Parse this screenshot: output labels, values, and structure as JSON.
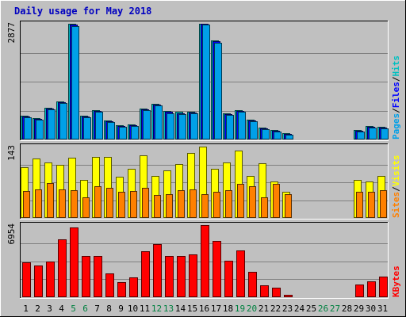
{
  "chart_data": {
    "type": "bar",
    "title": "Daily usage for May 2018",
    "colors": {
      "background": "#c0c0c0",
      "title": "#0000c0",
      "hits": "#00c0c0",
      "pages": "#00a0e8",
      "files": "#0000ff",
      "visits": "#ffff00",
      "sites": "#ff8000",
      "kbytes": "#ff0000",
      "weekday_label": "#000000",
      "weekend_label": "#008040",
      "slash": "#000000"
    },
    "days": [
      "1",
      "2",
      "3",
      "4",
      "5",
      "6",
      "7",
      "8",
      "9",
      "10",
      "11",
      "12",
      "13",
      "14",
      "15",
      "16",
      "17",
      "18",
      "19",
      "20",
      "21",
      "22",
      "23",
      "24",
      "25",
      "26",
      "27",
      "28",
      "29",
      "30",
      "31"
    ],
    "weekend_days": [
      "5",
      "6",
      "12",
      "13",
      "19",
      "20",
      "26",
      "27"
    ],
    "panels": [
      {
        "name": "hits-files-pages",
        "max_label": "2877",
        "max": 2877,
        "legend": [
          "Pages",
          "/",
          "Files",
          "/",
          "Hits"
        ],
        "series": [
          {
            "name": "Hits",
            "values": [
              600,
              540,
              780,
              940,
              2877,
              590,
              730,
              480,
              360,
              370,
              770,
              890,
              700,
              680,
              690,
              2877,
              2460,
              650,
              730,
              500,
              290,
              240,
              150,
              0,
              0,
              0,
              0,
              0,
              240,
              340,
              310
            ]
          },
          {
            "name": "Files",
            "values": [
              580,
              520,
              760,
              920,
              2860,
              570,
              710,
              460,
              340,
              350,
              750,
              870,
              680,
              660,
              670,
              2870,
              2440,
              630,
              710,
              480,
              270,
              220,
              130,
              0,
              0,
              0,
              0,
              0,
              220,
              320,
              290
            ]
          },
          {
            "name": "Pages",
            "values": [
              560,
              500,
              740,
              900,
              2820,
              550,
              690,
              440,
              320,
              330,
              730,
              850,
              660,
              640,
              660,
              2860,
              2400,
              610,
              690,
              460,
              250,
              200,
              110,
              0,
              0,
              0,
              0,
              0,
              200,
              300,
              270
            ]
          }
        ]
      },
      {
        "name": "visits-sites",
        "max_label": "143",
        "max": 143,
        "legend": [
          "Sites",
          "/",
          "Visits"
        ],
        "series": [
          {
            "name": "Visits",
            "values": [
              102,
              119,
              112,
              107,
              121,
              77,
              122,
              122,
              82,
              99,
              125,
              84,
              96,
              108,
              130,
              143,
              98,
              112,
              135,
              84,
              110,
              73,
              52,
              0,
              0,
              0,
              0,
              0,
              77,
              73,
              84
            ]
          },
          {
            "name": "Sites",
            "values": [
              54,
              57,
              70,
              57,
              56,
              41,
              64,
              61,
              52,
              54,
              60,
              46,
              48,
              56,
              57,
              47,
              52,
              56,
              69,
              64,
              41,
              68,
              48,
              0,
              0,
              0,
              0,
              0,
              53,
              53,
              56
            ]
          }
        ]
      },
      {
        "name": "kbytes",
        "max_label": "6954",
        "max": 6954,
        "legend": [
          "KBytes"
        ],
        "series": [
          {
            "name": "KBytes",
            "values": [
              3350,
              3030,
              3450,
              5580,
              6700,
              4000,
              4000,
              2300,
              1470,
              1930,
              4450,
              5150,
              3950,
              3950,
              4100,
              6954,
              5450,
              3520,
              4530,
              2410,
              1170,
              920,
              260,
              0,
              0,
              0,
              0,
              0,
              1210,
              1530,
              1990
            ]
          }
        ]
      }
    ]
  }
}
